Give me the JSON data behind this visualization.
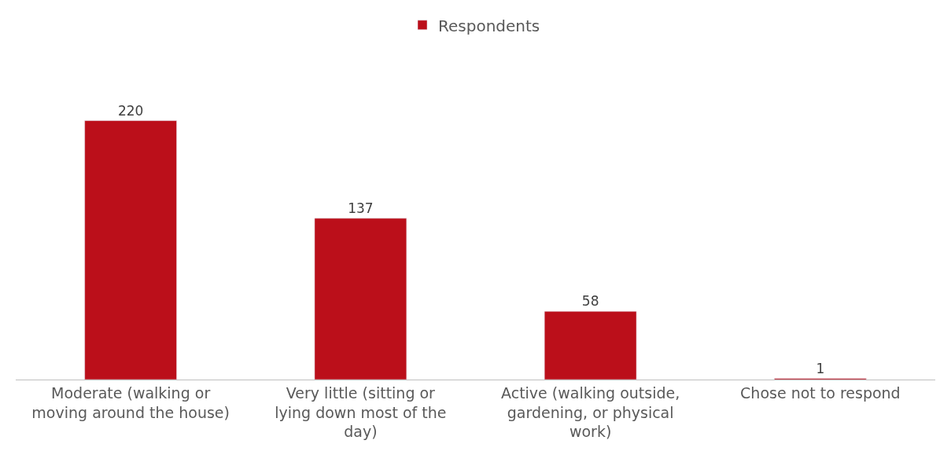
{
  "chart_data": {
    "type": "bar",
    "categories": [
      "Moderate (walking or moving around the house)",
      "Very little (sitting or lying down most of the day)",
      "Active (walking outside, gardening, or physical work)",
      "Chose not to respond"
    ],
    "series": [
      {
        "name": "Respondents",
        "color": "#bb0f1a",
        "values": [
          220,
          137,
          58,
          1
        ]
      }
    ],
    "data_labels": true,
    "legend": "top"
  }
}
